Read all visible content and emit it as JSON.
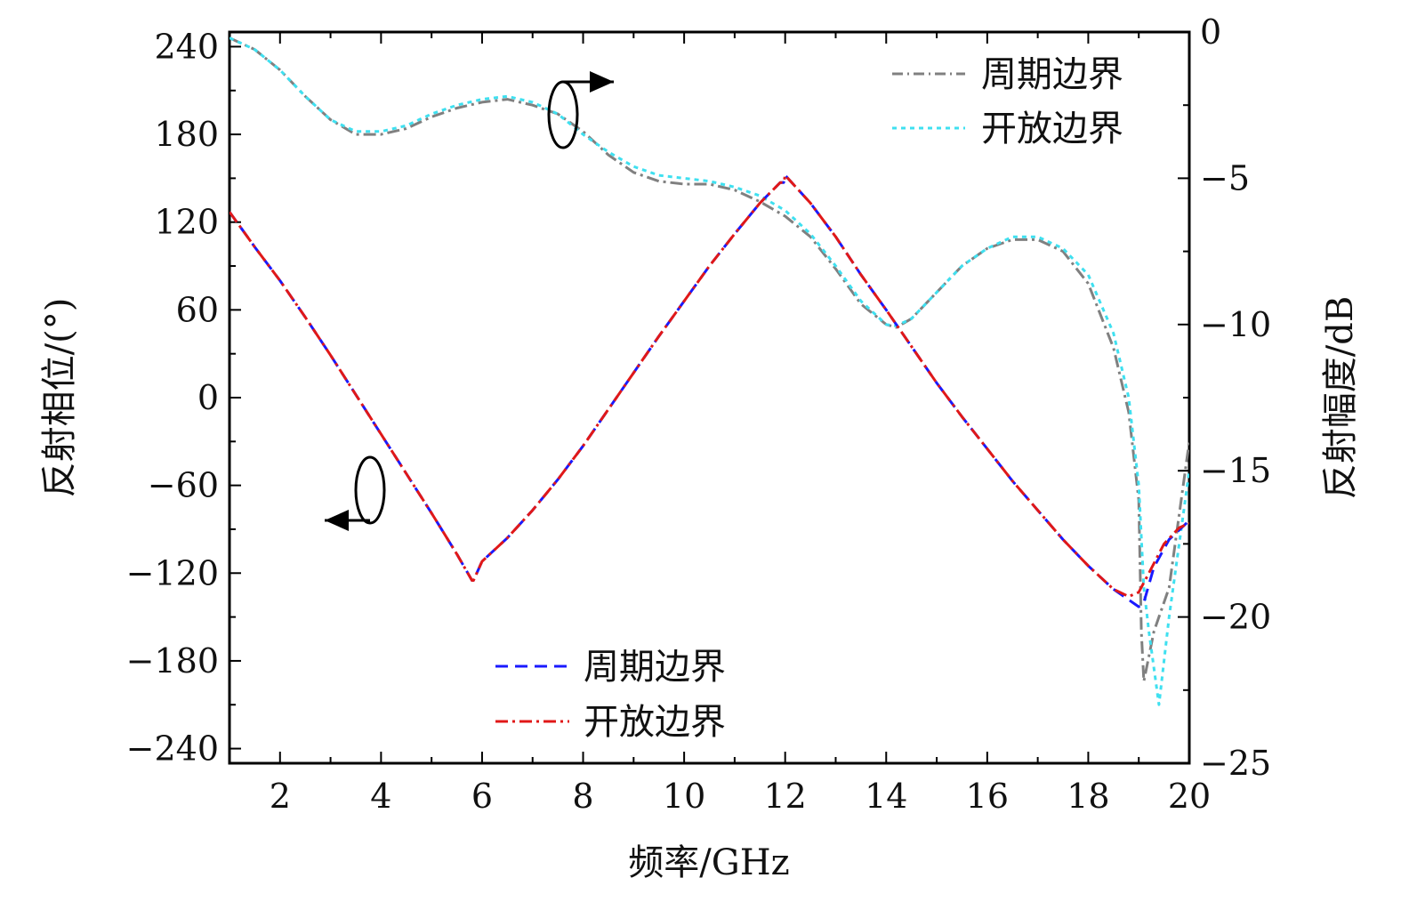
{
  "chart_data": {
    "type": "line",
    "xlabel": "频率/GHz",
    "ylabel_left": "反射相位/(°)",
    "ylabel_right": "反射幅度/dB",
    "xlim": [
      1,
      20
    ],
    "ylim_left": [
      -250,
      250
    ],
    "ylim_right": [
      -25,
      0
    ],
    "x_ticks": [
      2,
      4,
      6,
      8,
      10,
      12,
      14,
      16,
      18,
      20
    ],
    "y_left_ticks": [
      240,
      180,
      120,
      60,
      0,
      -60,
      -120,
      -180,
      -240
    ],
    "y_right_ticks": [
      0,
      -5,
      -10,
      -15,
      -20,
      -25
    ],
    "tick_labels": {
      "x": [
        "2",
        "4",
        "6",
        "8",
        "10",
        "12",
        "14",
        "16",
        "18",
        "20"
      ],
      "y_left": [
        "240",
        "180",
        "120",
        "60",
        "0",
        "−60",
        "−120",
        "−180",
        "−240"
      ],
      "y_right": [
        "0",
        "−5",
        "−10",
        "−15",
        "−20",
        "−25"
      ]
    },
    "legends": {
      "magnitude": [
        "周期边界",
        "开放边界"
      ],
      "phase": [
        "周期边界",
        "开放边界"
      ]
    },
    "series": [
      {
        "name": "周期边界",
        "axis": "right",
        "quantity": "magnitude",
        "color": "#808080",
        "dash": "dashdot",
        "x": [
          1.0,
          1.5,
          2.0,
          2.5,
          3.0,
          3.5,
          4.0,
          4.5,
          5.0,
          5.5,
          6.0,
          6.5,
          7.0,
          7.5,
          8.0,
          8.5,
          9.0,
          9.5,
          10.0,
          10.5,
          11.0,
          11.5,
          12.0,
          12.5,
          13.0,
          13.5,
          14.0,
          14.2,
          14.5,
          15.0,
          15.5,
          16.0,
          16.5,
          17.0,
          17.5,
          18.0,
          18.5,
          18.8,
          19.0,
          19.05,
          19.1,
          19.3,
          19.6,
          20.0
        ],
        "y": [
          -0.2,
          -0.6,
          -1.3,
          -2.2,
          -3.0,
          -3.5,
          -3.5,
          -3.3,
          -2.9,
          -2.6,
          -2.4,
          -2.3,
          -2.5,
          -2.8,
          -3.4,
          -4.2,
          -4.8,
          -5.1,
          -5.2,
          -5.2,
          -5.4,
          -5.8,
          -6.3,
          -7.0,
          -8.1,
          -9.3,
          -10.0,
          -10.1,
          -9.8,
          -8.9,
          -8.0,
          -7.4,
          -7.1,
          -7.1,
          -7.5,
          -8.6,
          -10.8,
          -13.0,
          -16.0,
          -20.5,
          -22.2,
          -20.5,
          -19.0,
          -14.0
        ]
      },
      {
        "name": "开放边界",
        "axis": "right",
        "quantity": "magnitude",
        "color": "#3fe0f0",
        "dash": "dotted",
        "x": [
          1.0,
          1.5,
          2.0,
          2.5,
          3.0,
          3.5,
          4.0,
          4.5,
          5.0,
          5.5,
          6.0,
          6.5,
          7.0,
          7.5,
          8.0,
          8.5,
          9.0,
          9.5,
          10.0,
          10.5,
          11.0,
          11.5,
          12.0,
          12.5,
          13.0,
          13.5,
          14.0,
          14.2,
          14.5,
          15.0,
          15.5,
          16.0,
          16.5,
          17.0,
          17.5,
          18.0,
          18.5,
          18.8,
          19.0,
          19.1,
          19.2,
          19.4,
          19.6,
          20.0
        ],
        "y": [
          -0.2,
          -0.6,
          -1.3,
          -2.2,
          -3.0,
          -3.4,
          -3.4,
          -3.2,
          -2.8,
          -2.5,
          -2.3,
          -2.2,
          -2.4,
          -2.8,
          -3.5,
          -4.1,
          -4.6,
          -4.9,
          -5.0,
          -5.1,
          -5.3,
          -5.6,
          -6.1,
          -6.9,
          -8.0,
          -9.2,
          -10.0,
          -10.05,
          -9.8,
          -8.9,
          -8.0,
          -7.4,
          -7.0,
          -7.0,
          -7.4,
          -8.3,
          -10.3,
          -12.5,
          -15.5,
          -19.0,
          -20.5,
          -23.0,
          -20.0,
          -15.0
        ]
      },
      {
        "name": "周期边界",
        "axis": "left",
        "quantity": "phase",
        "color": "#1a1aff",
        "dash": "dashed",
        "x": [
          1.0,
          1.5,
          2.0,
          2.5,
          3.0,
          3.5,
          4.0,
          4.5,
          5.0,
          5.5,
          5.8,
          5.83,
          6.0,
          6.5,
          7.0,
          7.5,
          8.0,
          8.5,
          9.0,
          9.5,
          10.0,
          10.5,
          11.0,
          11.5,
          11.9,
          11.97,
          12.0,
          12.5,
          13.0,
          13.5,
          14.0,
          14.5,
          15.0,
          15.5,
          16.0,
          16.5,
          17.0,
          17.5,
          18.0,
          18.5,
          19.0,
          19.1,
          19.3,
          19.6,
          20.0
        ],
        "y": [
          127,
          103,
          80,
          55,
          29,
          2,
          -25,
          -52,
          -79,
          -107,
          -125,
          -125,
          -112,
          -96,
          -77,
          -56,
          -33,
          -8,
          17,
          42,
          66,
          90,
          112,
          133,
          147,
          147,
          152,
          133,
          110,
          84,
          60,
          35,
          10,
          -13,
          -35,
          -57,
          -77,
          -97,
          -115,
          -131,
          -143,
          -140,
          -116,
          -97,
          -84
        ]
      },
      {
        "name": "开放边界",
        "axis": "left",
        "quantity": "phase",
        "color": "#e01818",
        "dash": "dashdot",
        "x": [
          1.0,
          1.5,
          2.0,
          2.5,
          3.0,
          3.5,
          4.0,
          4.5,
          5.0,
          5.5,
          5.8,
          5.83,
          6.0,
          6.5,
          7.0,
          7.5,
          8.0,
          8.5,
          9.0,
          9.5,
          10.0,
          10.5,
          11.0,
          11.5,
          11.9,
          11.97,
          12.0,
          12.5,
          13.0,
          13.5,
          14.0,
          14.5,
          15.0,
          15.5,
          16.0,
          16.5,
          17.0,
          17.5,
          18.0,
          18.5,
          18.8,
          19.0,
          19.2,
          19.5,
          19.8,
          20.0
        ],
        "y": [
          127,
          103,
          80,
          55,
          29,
          2,
          -25,
          -52,
          -79,
          -107,
          -125,
          -125,
          -112,
          -96,
          -77,
          -56,
          -33,
          -8,
          17,
          42,
          66,
          90,
          112,
          133,
          147,
          147,
          152,
          133,
          110,
          84,
          60,
          35,
          10,
          -13,
          -35,
          -57,
          -77,
          -97,
          -115,
          -131,
          -136,
          -133,
          -120,
          -100,
          -89,
          -86
        ]
      }
    ]
  }
}
